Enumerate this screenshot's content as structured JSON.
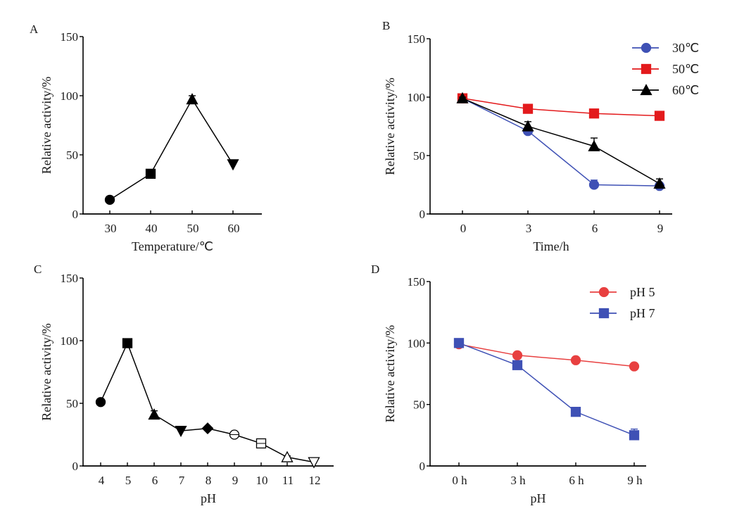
{
  "chart_data": [
    {
      "id": "A",
      "type": "line",
      "panel_label": "A",
      "title": "",
      "xlabel": "Temperature/℃",
      "ylabel": "Relative activity/%",
      "x_type": "numeric",
      "x": [
        30,
        40,
        50,
        60
      ],
      "xticks": [
        "30",
        "40",
        "50",
        "60"
      ],
      "ylim": [
        0,
        150
      ],
      "yticks": [
        "0",
        "50",
        "100",
        "150"
      ],
      "legend": null,
      "series": [
        {
          "name": "activity",
          "color": "#000000",
          "markers": [
            "circle",
            "square",
            "triangle-up",
            "triangle-down"
          ],
          "values": [
            12,
            34,
            97,
            42
          ],
          "errors": [
            1.5,
            3,
            3,
            3
          ]
        }
      ]
    },
    {
      "id": "B",
      "type": "line",
      "panel_label": "B",
      "title": "",
      "xlabel": "Time/h",
      "ylabel": "Relative activity/%",
      "x": [
        0,
        3,
        6,
        9
      ],
      "xticks": [
        "0",
        "3",
        "6",
        "9"
      ],
      "ylim": [
        0,
        150
      ],
      "yticks": [
        "0",
        "50",
        "100",
        "150"
      ],
      "legend": "top-right",
      "series": [
        {
          "name": "30℃",
          "color": "#3f51b5",
          "marker": "circle",
          "values": [
            99,
            71,
            25,
            24
          ],
          "errors": [
            1,
            1,
            4,
            3
          ]
        },
        {
          "name": "50℃",
          "color": "#e31a1c",
          "marker": "square",
          "values": [
            99,
            90,
            86,
            84
          ],
          "errors": [
            1,
            1,
            1,
            1
          ]
        },
        {
          "name": "60℃",
          "color": "#000000",
          "marker": "triangle-up",
          "values": [
            99,
            75,
            58,
            26
          ],
          "errors": [
            1,
            4,
            7,
            4
          ]
        }
      ]
    },
    {
      "id": "C",
      "type": "line",
      "panel_label": "C",
      "title": "",
      "xlabel": "pH",
      "ylabel": "Relative activity/%",
      "x": [
        4,
        5,
        6,
        7,
        8,
        9,
        10,
        11,
        12
      ],
      "xticks": [
        "4",
        "5",
        "6",
        "7",
        "8",
        "9",
        "10",
        "11",
        "12"
      ],
      "ylim": [
        0,
        150
      ],
      "yticks": [
        "0",
        "50",
        "100",
        "150"
      ],
      "legend": null,
      "series": [
        {
          "name": "activity",
          "color": "#000000",
          "markers": [
            "circle",
            "square",
            "triangle-up",
            "triangle-down",
            "diamond",
            "circle-open",
            "square-open",
            "triangle-up-open",
            "triangle-down-open"
          ],
          "values": [
            51,
            98,
            41,
            28,
            30,
            25,
            18,
            7,
            3
          ],
          "errors": [
            2,
            1,
            3,
            3,
            1,
            2,
            2,
            1,
            2
          ]
        }
      ]
    },
    {
      "id": "D",
      "type": "line",
      "panel_label": "D",
      "title": "",
      "xlabel": "pH",
      "ylabel": "Relative activity/%",
      "x": [
        0,
        3,
        6,
        9
      ],
      "xticks": [
        "0 h",
        "3 h",
        "6 h",
        "9 h"
      ],
      "ylim": [
        0,
        150
      ],
      "yticks": [
        "0",
        "50",
        "100",
        "150"
      ],
      "legend": "top-right",
      "series": [
        {
          "name": "pH 5",
          "color": "#e84040",
          "marker": "circle",
          "values": [
            99,
            90,
            86,
            81
          ],
          "errors": [
            1,
            1,
            1,
            1
          ]
        },
        {
          "name": "pH 7",
          "color": "#3f51b5",
          "marker": "square",
          "values": [
            100,
            82,
            44,
            25
          ],
          "errors": [
            1,
            1,
            1,
            5
          ]
        }
      ]
    }
  ]
}
